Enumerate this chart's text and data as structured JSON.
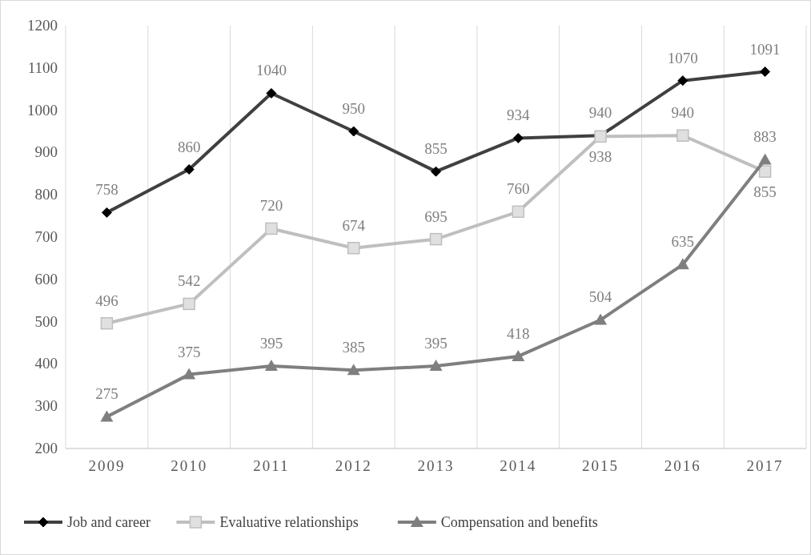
{
  "chart_data": {
    "type": "line",
    "categories": [
      "2009",
      "2010",
      "2011",
      "2012",
      "2013",
      "2014",
      "2015",
      "2016",
      "2017"
    ],
    "series": [
      {
        "name": "Job and career",
        "color": "#404040",
        "marker": "diamond",
        "values": [
          758,
          860,
          1040,
          950,
          855,
          934,
          940,
          1070,
          1091
        ]
      },
      {
        "name": "Evaluative relationships",
        "color": "#bfbfbf",
        "marker": "square",
        "values": [
          496,
          542,
          720,
          674,
          695,
          760,
          938,
          940,
          855
        ]
      },
      {
        "name": "Compensation and benefits",
        "color": "#7f7f7f",
        "marker": "triangle",
        "values": [
          275,
          375,
          395,
          385,
          395,
          418,
          504,
          635,
          883
        ]
      }
    ],
    "ylim": [
      200,
      1200
    ],
    "yticks": [
      200,
      300,
      400,
      500,
      600,
      700,
      800,
      900,
      1000,
      1100,
      1200
    ],
    "grid": "x",
    "legend": "bottom",
    "data_labels": true,
    "line_style": "solid"
  }
}
